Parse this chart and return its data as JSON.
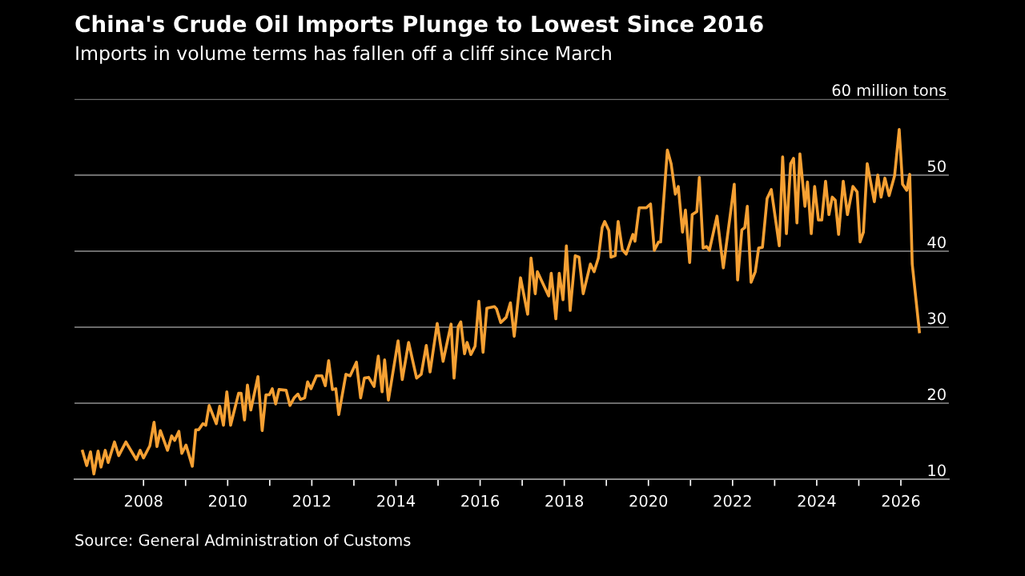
{
  "chart_data": {
    "type": "line",
    "title": "China's Crude Oil Imports Plunge to Lowest Since 2016",
    "subtitle": "Imports in volume terms has fallen off a cliff since March",
    "annotations": [
      "Source: General Administration of Customs"
    ],
    "x": [
      2006.55,
      2006.65,
      2006.74,
      2006.82,
      2006.92,
      2006.99,
      2007.09,
      2007.16,
      2007.31,
      2007.41,
      2007.58,
      2007.83,
      2007.92,
      2008.0,
      2008.15,
      2008.25,
      2008.32,
      2008.4,
      2008.57,
      2008.67,
      2008.74,
      2008.84,
      2008.91,
      2009.01,
      2009.16,
      2009.24,
      2009.31,
      2009.41,
      2009.48,
      2009.56,
      2009.73,
      2009.81,
      2009.9,
      2009.98,
      2010.07,
      2010.26,
      2010.32,
      2010.4,
      2010.47,
      2010.55,
      2010.72,
      2010.82,
      2010.91,
      2010.99,
      2011.06,
      2011.14,
      2011.22,
      2011.39,
      2011.48,
      2011.58,
      2011.67,
      2011.73,
      2011.83,
      2011.9,
      2011.98,
      2012.11,
      2012.24,
      2012.32,
      2012.4,
      2012.49,
      2012.57,
      2012.64,
      2012.81,
      2012.91,
      2013.06,
      2013.16,
      2013.25,
      2013.35,
      2013.48,
      2013.58,
      2013.67,
      2013.73,
      2013.82,
      2014.05,
      2014.15,
      2014.3,
      2014.49,
      2014.6,
      2014.72,
      2014.81,
      2014.98,
      2015.12,
      2015.31,
      2015.38,
      2015.48,
      2015.54,
      2015.63,
      2015.69,
      2015.78,
      2015.88,
      2015.97,
      2016.07,
      2016.16,
      2016.34,
      2016.39,
      2016.49,
      2016.62,
      2016.72,
      2016.81,
      2016.96,
      2017.13,
      2017.21,
      2017.31,
      2017.36,
      2017.63,
      2017.69,
      2017.8,
      2017.88,
      2017.97,
      2018.05,
      2018.14,
      2018.26,
      2018.35,
      2018.45,
      2018.62,
      2018.71,
      2018.81,
      2018.9,
      2018.96,
      2019.06,
      2019.11,
      2019.21,
      2019.28,
      2019.38,
      2019.47,
      2019.63,
      2019.68,
      2019.78,
      2019.95,
      2020.05,
      2020.14,
      2020.24,
      2020.29,
      2020.45,
      2020.54,
      2020.64,
      2020.71,
      2020.81,
      2020.88,
      2020.98,
      2021.04,
      2021.15,
      2021.21,
      2021.3,
      2021.38,
      2021.45,
      2021.63,
      2021.78,
      2022.04,
      2022.12,
      2022.22,
      2022.29,
      2022.35,
      2022.44,
      2022.54,
      2022.62,
      2022.71,
      2022.82,
      2022.92,
      2023.11,
      2023.19,
      2023.28,
      2023.38,
      2023.45,
      2023.53,
      2023.6,
      2023.72,
      2023.78,
      2023.87,
      2023.95,
      2024.04,
      2024.12,
      2024.21,
      2024.29,
      2024.37,
      2024.44,
      2024.52,
      2024.63,
      2024.73,
      2024.86,
      2024.96,
      2025.03,
      2025.11,
      2025.2,
      2025.37,
      2025.45,
      2025.53,
      2025.62,
      2025.72,
      2025.85,
      2025.96,
      2026.04,
      2026.14,
      2026.21,
      2026.27,
      2026.44
    ],
    "series": [
      {
        "color": "#f5a033",
        "values": [
          13.7,
          11.8,
          13.6,
          10.7,
          13.7,
          11.6,
          13.8,
          12.2,
          14.9,
          13.1,
          14.9,
          12.6,
          13.8,
          12.8,
          14.4,
          17.5,
          14.3,
          16.4,
          13.8,
          15.7,
          15.1,
          16.3,
          13.4,
          14.5,
          11.7,
          16.5,
          16.5,
          17.3,
          17.1,
          19.7,
          17.3,
          19.6,
          17.1,
          21.5,
          17.1,
          21.3,
          21.3,
          17.8,
          22.4,
          19.1,
          23.5,
          16.4,
          21.1,
          21.1,
          21.9,
          19.9,
          21.8,
          21.7,
          19.7,
          20.7,
          21.2,
          20.5,
          20.7,
          22.8,
          21.9,
          23.6,
          23.6,
          22.3,
          25.6,
          21.8,
          21.9,
          18.5,
          23.8,
          23.6,
          25.4,
          20.7,
          23.3,
          23.4,
          22.2,
          26.2,
          21.5,
          25.7,
          20.4,
          28.2,
          23.1,
          28.0,
          23.3,
          23.8,
          27.6,
          24.1,
          30.5,
          25.5,
          30.4,
          23.3,
          30.1,
          30.7,
          26.5,
          28.0,
          26.4,
          27.5,
          33.4,
          26.7,
          32.5,
          32.7,
          32.4,
          30.6,
          31.3,
          33.2,
          28.8,
          36.5,
          31.7,
          39.1,
          34.4,
          37.3,
          34.1,
          37.1,
          31.1,
          37.1,
          33.6,
          40.7,
          32.2,
          39.4,
          39.2,
          34.4,
          38.3,
          37.3,
          39.1,
          43.1,
          43.9,
          42.7,
          39.2,
          39.4,
          43.9,
          40.2,
          39.6,
          42.2,
          41.3,
          45.7,
          45.7,
          46.2,
          40.1,
          41.2,
          41.2,
          53.3,
          51.5,
          47.5,
          48.5,
          42.5,
          45.4,
          38.5,
          44.8,
          45.2,
          49.7,
          40.4,
          40.6,
          40.1,
          44.6,
          37.8,
          48.8,
          36.2,
          42.8,
          43.1,
          45.9,
          35.9,
          37.3,
          40.4,
          40.5,
          46.9,
          48.1,
          40.7,
          52.4,
          42.3,
          51.5,
          52.2,
          43.7,
          52.8,
          45.9,
          49.1,
          42.3,
          48.5,
          44.1,
          44.1,
          49.2,
          44.8,
          47.1,
          46.7,
          42.2,
          49.2,
          44.8,
          48.5,
          47.8,
          41.2,
          42.5,
          51.5,
          46.5,
          50.0,
          47.1,
          49.6,
          47.3,
          49.9,
          56.0,
          48.8,
          48.0,
          50.1,
          38.3,
          29.4
        ]
      }
    ],
    "xlim": [
      2006.36,
      2027.14
    ],
    "xticks": [
      2008,
      {
        "value": 2009,
        "label": null
      },
      2010,
      {
        "value": 2011,
        "label": null
      },
      2012,
      {
        "value": 2013,
        "label": null
      },
      2014,
      {
        "value": 2015,
        "label": null
      },
      2016,
      {
        "value": 2017,
        "label": null
      },
      2018,
      {
        "value": 2019,
        "label": null
      },
      2020,
      {
        "value": 2021,
        "label": null
      },
      2022,
      {
        "value": 2023,
        "label": null
      },
      2024,
      {
        "value": 2025,
        "label": null
      },
      2026
    ],
    "ylim": [
      10,
      60
    ],
    "yticks": [
      10,
      20,
      30,
      40,
      50,
      {
        "value": 60,
        "label": "60 million tons"
      }
    ],
    "grid": "y",
    "line_style": "solid",
    "marker": "none"
  }
}
